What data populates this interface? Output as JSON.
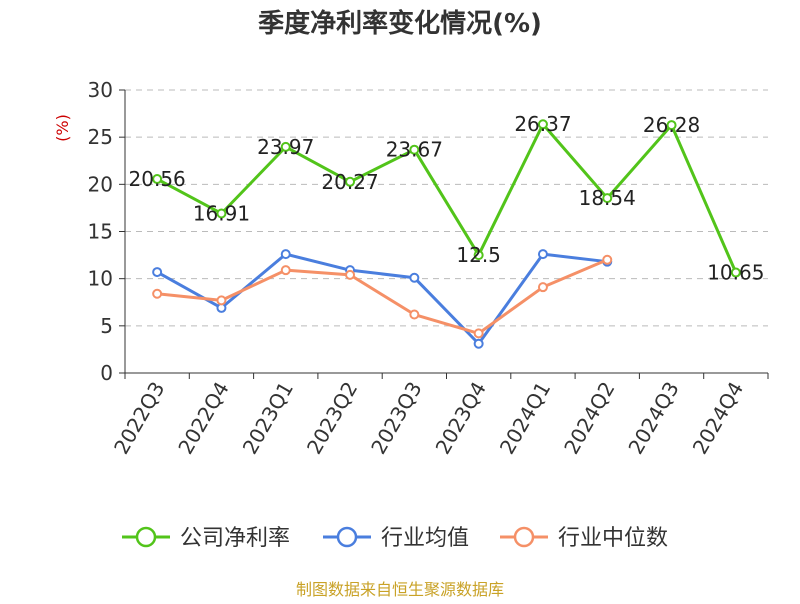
{
  "chart_data": {
    "type": "line",
    "title": "季度净利率变化情况(%)",
    "ylabel": "(%)",
    "xlabel": "",
    "ylim": [
      0,
      30
    ],
    "yticks": [
      0,
      5,
      10,
      15,
      20,
      25,
      30
    ],
    "grid": true,
    "legend_position": "bottom",
    "categories": [
      "2022Q3",
      "2022Q4",
      "2023Q1",
      "2023Q2",
      "2023Q3",
      "2023Q4",
      "2024Q1",
      "2024Q2",
      "2024Q3",
      "2024Q4"
    ],
    "series": [
      {
        "name": "公司净利率",
        "color": "#52c41a",
        "values": [
          20.56,
          16.91,
          23.97,
          20.27,
          23.67,
          12.5,
          26.37,
          18.54,
          26.28,
          10.65
        ],
        "labels": [
          "20.56",
          "16.91",
          "23.97",
          "20.27",
          "23.67",
          "12.5",
          "26.37",
          "18.54",
          "26.28",
          "10.65"
        ]
      },
      {
        "name": "行业均值",
        "color": "#4a7ede",
        "values": [
          10.7,
          6.9,
          12.6,
          10.9,
          10.1,
          3.1,
          12.6,
          11.8,
          null,
          null
        ]
      },
      {
        "name": "行业中位数",
        "color": "#f59067",
        "values": [
          8.4,
          7.7,
          10.9,
          10.4,
          6.2,
          4.2,
          9.1,
          12.0,
          null,
          null
        ]
      }
    ]
  },
  "footer": {
    "source": "制图数据来自恒生聚源数据库"
  }
}
